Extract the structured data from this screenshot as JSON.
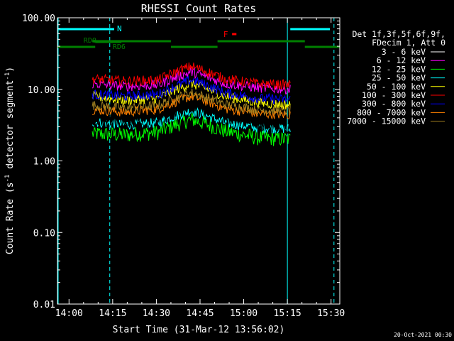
{
  "chart_data": {
    "type": "line",
    "title": "RHESSI Count Rates",
    "xlabel": "Start Time (31-Mar-12 13:56:02)",
    "ylabel": "Count Rate (s",
    "ylabel_sup": "-1",
    "ylabel_rest": " detector segment",
    "ylabel_sup2": "-1",
    "ylabel_end": ")",
    "y_scale": "log",
    "ylim": [
      0.01,
      100
    ],
    "xlim": [
      "13:56:02",
      "15:33"
    ],
    "x_ticks": [
      "14:00",
      "14:15",
      "14:30",
      "14:45",
      "15:00",
      "15:15",
      "15:30"
    ],
    "y_ticks": [
      "0.01",
      "0.10",
      "1.00",
      "10.00",
      "100.00"
    ],
    "grid": false,
    "legend_header": [
      "Det 1f,3f,5f,6f,9f,",
      "FDecim 1, Att 0"
    ],
    "legend_position": "right",
    "series": [
      {
        "name": "3 - 6 keV",
        "color": "#000000",
        "levels": [
          4.0,
          3.6,
          4.2,
          6.6,
          4.6,
          3.6,
          3.3
        ]
      },
      {
        "name": "6 - 12 keV",
        "color": "#ff00ff",
        "levels": [
          12.0,
          11.0,
          11.5,
          17.5,
          12.0,
          10.5,
          10.0
        ]
      },
      {
        "name": "12 - 25 keV",
        "color": "#00ff00",
        "levels": [
          2.4,
          2.3,
          2.5,
          3.8,
          2.6,
          2.1,
          2.0
        ]
      },
      {
        "name": "25 - 50 keV",
        "color": "#00ffff",
        "levels": [
          3.5,
          3.2,
          3.4,
          5.0,
          3.4,
          2.9,
          2.8
        ]
      },
      {
        "name": "50 - 100 keV",
        "color": "#ffff00",
        "levels": [
          8.0,
          7.0,
          7.5,
          12.0,
          8.0,
          6.5,
          6.0
        ]
      },
      {
        "name": "100 - 300 keV",
        "color": "#ff0000",
        "levels": [
          14.0,
          13.0,
          13.5,
          21.0,
          14.0,
          12.0,
          11.5
        ]
      },
      {
        "name": "300 - 800 keV",
        "color": "#0000ff",
        "levels": [
          8.5,
          8.0,
          8.5,
          13.5,
          9.0,
          7.5,
          7.2
        ]
      },
      {
        "name": "800 - 7000 keV",
        "color": "#ff8000",
        "levels": [
          5.2,
          4.8,
          5.3,
          8.0,
          5.4,
          4.6,
          4.4
        ]
      },
      {
        "name": "7000 - 15000 keV",
        "color": "#a08020",
        "levels": [
          6.0,
          5.5,
          6.0,
          9.0,
          6.2,
          5.2,
          5.0
        ]
      }
    ],
    "series_time_range": [
      "14:08",
      "15:16"
    ],
    "annotations": {
      "n_label": "N",
      "f_label": "F",
      "rd0_label": "RD0",
      "rd6_label": "RD6"
    },
    "footer_date": "20-Oct-2021 00:30"
  }
}
